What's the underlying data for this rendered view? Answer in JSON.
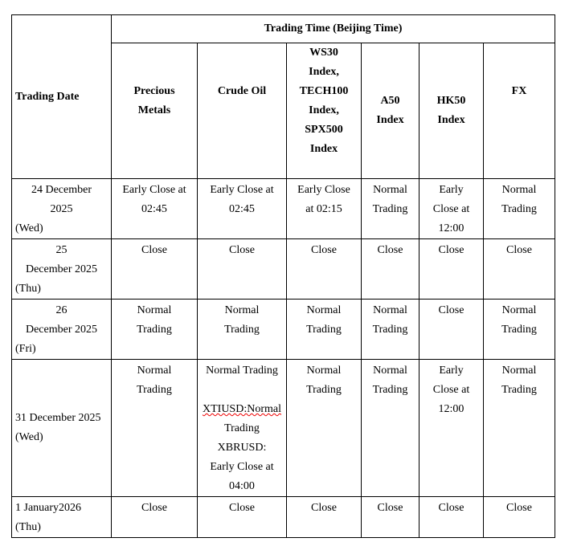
{
  "header": {
    "trading_date": "Trading Date",
    "trading_time": "Trading Time (Beijing Time)",
    "columns": [
      [
        "Precious",
        "Metals"
      ],
      [
        "Crude Oil"
      ],
      [
        "WS30",
        "Index,",
        "TECH100",
        "Index,",
        "SPX500",
        "Index"
      ],
      [
        "A50",
        "Index"
      ],
      [
        "HK50",
        "Index"
      ],
      [
        "FX"
      ]
    ]
  },
  "rows": [
    {
      "date": [
        "24 December",
        "2025",
        "(Wed)"
      ],
      "cells": [
        [
          "Early Close at",
          "02:45"
        ],
        [
          "Early Close at",
          "02:45"
        ],
        [
          "Early Close",
          "at 02:15"
        ],
        [
          "Normal",
          "Trading"
        ],
        [
          "Early",
          "Close at",
          "12:00"
        ],
        [
          "Normal",
          "Trading"
        ]
      ]
    },
    {
      "date": [
        "25",
        "December 2025",
        "(Thu)"
      ],
      "cells": [
        [
          "Close"
        ],
        [
          "Close"
        ],
        [
          "Close"
        ],
        [
          "Close"
        ],
        [
          "Close"
        ],
        [
          "Close"
        ]
      ]
    },
    {
      "date": [
        "26",
        "December 2025",
        "(Fri)"
      ],
      "cells": [
        [
          "Normal",
          "Trading"
        ],
        [
          "Normal",
          "Trading"
        ],
        [
          "Normal",
          "Trading"
        ],
        [
          "Normal",
          "Trading"
        ],
        [
          "Close"
        ],
        [
          "Normal",
          "Trading"
        ]
      ]
    },
    {
      "date": [
        "31 December 2025",
        "(Wed)"
      ],
      "cells": [
        [
          "Normal",
          "Trading"
        ],
        [
          "Normal Trading",
          "",
          "XTIUSD:Normal",
          "Trading",
          "XBRUSD:",
          "Early Close at",
          "04:00"
        ],
        [
          "Normal",
          "Trading"
        ],
        [
          "Normal",
          "Trading"
        ],
        [
          "Early",
          "Close at",
          "12:00"
        ],
        [
          "Normal",
          "Trading"
        ]
      ]
    },
    {
      "date": [
        "1 January2026",
        "(Thu)"
      ],
      "cells": [
        [
          "Close"
        ],
        [
          "Close"
        ],
        [
          "Close"
        ],
        [
          "Close"
        ],
        [
          "Close"
        ],
        [
          "Close"
        ]
      ]
    }
  ]
}
